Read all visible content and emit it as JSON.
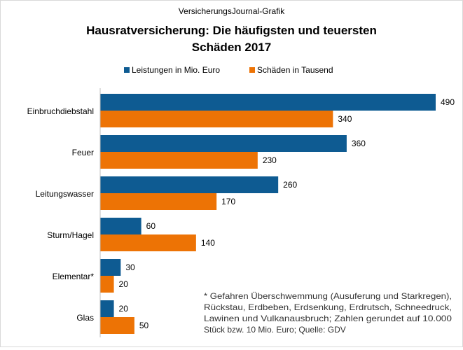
{
  "source_label": "VersicherungsJournal-Grafik",
  "chart_data": {
    "type": "bar",
    "orientation": "horizontal",
    "title": "Hausratversicherung: Die häufigsten und teuersten Schäden 2017",
    "title_lines": [
      "Hausratversicherung: Die häufigsten und teuersten",
      "Schäden 2017"
    ],
    "categories": [
      "Einbruchdiebstahl",
      "Feuer",
      "Leitungswasser",
      "Sturm/Hagel",
      "Elementar*",
      "Glas"
    ],
    "series": [
      {
        "name": "Leistungen in Mio. Euro",
        "color": "#0e5b92",
        "values": [
          490,
          360,
          260,
          60,
          30,
          20
        ]
      },
      {
        "name": "Schäden in Tausend",
        "color": "#ed7305",
        "values": [
          340,
          230,
          170,
          140,
          20,
          50
        ]
      }
    ],
    "xlim": [
      0,
      490
    ],
    "grid": false,
    "legend_position": "top-center",
    "data_labels": true
  },
  "footnote_lines": [
    "* Gefahren Überschwemmung (Ausuferung und Starkregen),",
    "Rückstau, Erdbeben, Erdsenkung, Erdrutsch, Schneedruck,",
    "Lawinen und Vulkanausbruch; Zahlen gerundet auf 10.000",
    "Stück bzw. 10 Mio. Euro; Quelle: GDV"
  ]
}
